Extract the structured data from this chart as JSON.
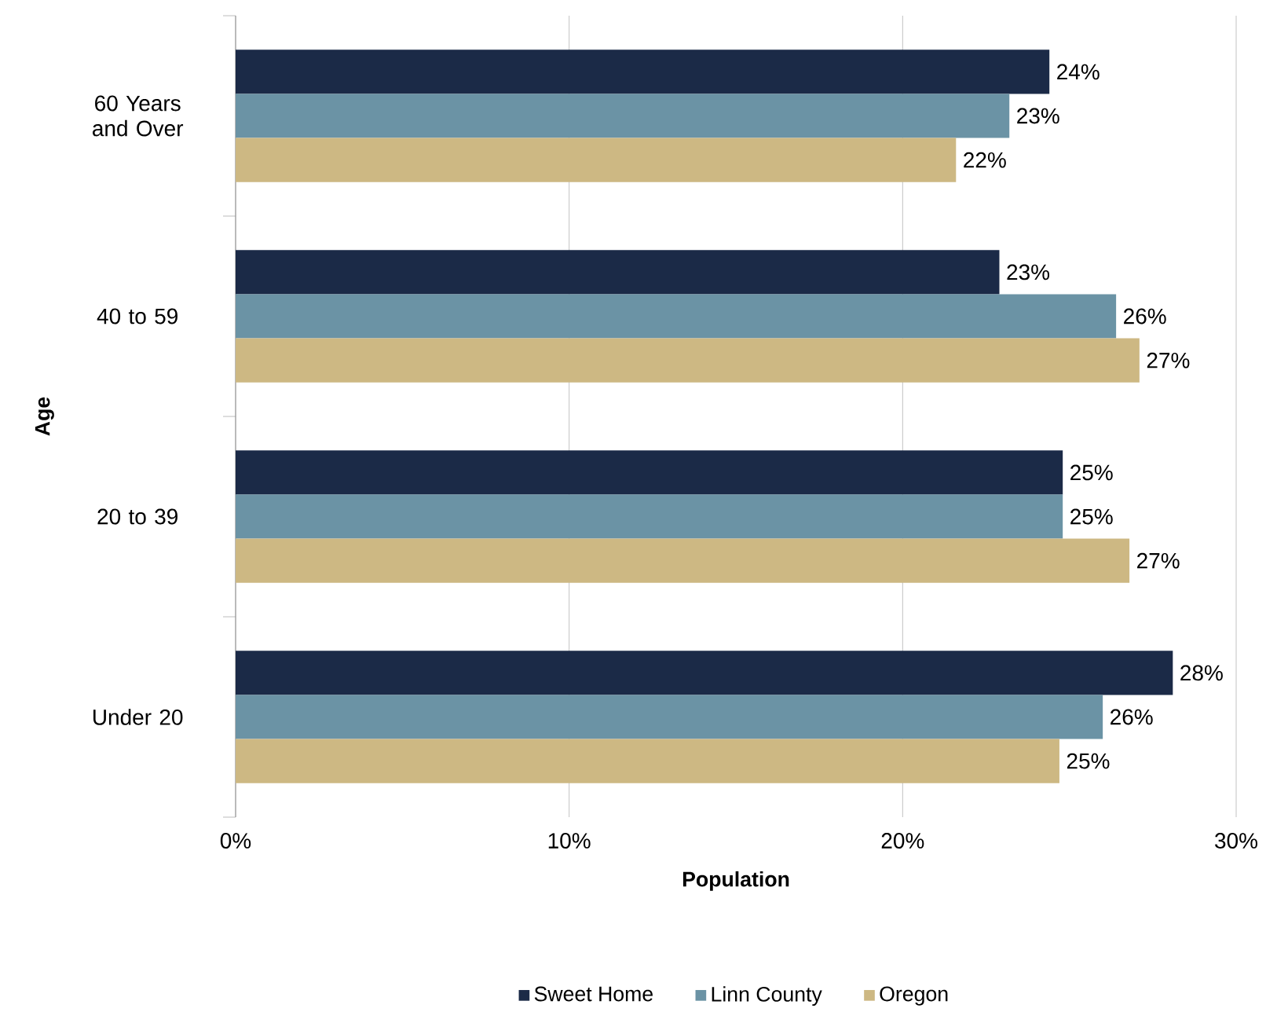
{
  "chart_data": {
    "type": "bar",
    "orientation": "horizontal",
    "xlabel": "Population",
    "ylabel": "Age",
    "categories": [
      "60 Years and Over",
      "40 to 59",
      "20 to 39",
      "Under 20"
    ],
    "series": [
      {
        "name": "Sweet Home",
        "color": "#1b2a47",
        "values": [
          24.4,
          22.9,
          24.8,
          28.1
        ],
        "value_labels": [
          "24%",
          "23%",
          "25%",
          "28%"
        ]
      },
      {
        "name": "Linn County",
        "color": "#6b93a5",
        "values": [
          23.2,
          26.4,
          24.8,
          26.0
        ],
        "value_labels": [
          "23%",
          "26%",
          "25%",
          "26%"
        ]
      },
      {
        "name": "Oregon",
        "color": "#cdb883",
        "values": [
          21.6,
          27.1,
          26.8,
          24.7
        ],
        "value_labels": [
          "22%",
          "27%",
          "27%",
          "25%"
        ]
      }
    ],
    "xlim": [
      0,
      30
    ],
    "xticks": [
      {
        "value": 0,
        "label": "0%"
      },
      {
        "value": 10,
        "label": "10%"
      },
      {
        "value": 20,
        "label": "20%"
      },
      {
        "value": 30,
        "label": "30%"
      }
    ],
    "grid": "x",
    "legend": "bottom"
  }
}
